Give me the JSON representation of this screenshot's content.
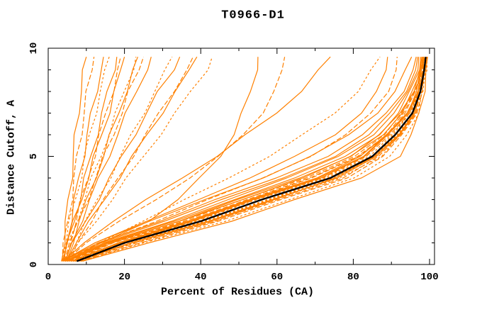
{
  "chart_data": {
    "type": "line",
    "title": "T0966-D1",
    "xlabel": "Percent of Residues (CA)",
    "ylabel": "Distance Cutoff, A",
    "xlim": [
      0,
      101.3
    ],
    "ylim": [
      0,
      10
    ],
    "x_axis": {
      "major_ticks": [
        0,
        20,
        40,
        60,
        80,
        100
      ],
      "minor_tick_step": 10
    },
    "y_axis": {
      "major_ticks": [
        0,
        5,
        10
      ],
      "minor_tick_step": 1
    },
    "grid": false,
    "legend_position": "none",
    "colors": {
      "model": "#ff8000",
      "reference": "#000000",
      "axis": "#000000",
      "background": "#ffffff"
    },
    "x_is": "percent_of_residues_CA",
    "y_is": "distance_cutoff_angstrom",
    "cutoffs": [
      0.15,
      1,
      2,
      3,
      4,
      5,
      6,
      7,
      8,
      9,
      9.6
    ],
    "series": [
      {
        "role": "model",
        "values": [
          3.5,
          4,
          4.7,
          5.4,
          6,
          6.6,
          7.2,
          7.9,
          8.5,
          9.4,
          10
        ]
      },
      {
        "role": "model",
        "values": [
          3.7,
          4.3,
          5.2,
          6,
          6.9,
          7.7,
          8.5,
          9.4,
          10.3,
          11.3,
          12
        ]
      },
      {
        "role": "model",
        "values": [
          4,
          4.8,
          5.9,
          7,
          8.1,
          9.2,
          10.3,
          11.4,
          12.6,
          13.8,
          14.5
        ]
      },
      {
        "role": "model",
        "values": [
          3.5,
          4.5,
          5.8,
          7.1,
          8.4,
          9.7,
          11,
          12.3,
          13.7,
          15.2,
          16
        ]
      },
      {
        "role": "model",
        "values": [
          4.2,
          5.2,
          6.7,
          8.2,
          9.7,
          11.2,
          12.7,
          14.2,
          15.7,
          17.2,
          18
        ]
      },
      {
        "role": "model",
        "values": [
          4.5,
          5.6,
          7.2,
          8.8,
          10.4,
          12,
          13.6,
          15.2,
          16.8,
          18.3,
          19
        ]
      },
      {
        "role": "model",
        "values": [
          3.8,
          5,
          6.8,
          8.6,
          10.4,
          12.2,
          14,
          15.8,
          17.5,
          19.2,
          20
        ]
      },
      {
        "role": "model",
        "values": [
          4,
          5.4,
          7.4,
          9.5,
          11.6,
          13.7,
          15.8,
          17.9,
          20,
          22,
          23
        ]
      },
      {
        "role": "model",
        "values": [
          4.8,
          6.2,
          8.2,
          10.3,
          12.3,
          14.4,
          16.4,
          18.4,
          20.4,
          22.5,
          23.5
        ]
      },
      {
        "role": "model",
        "values": [
          4.3,
          5.8,
          8,
          10.2,
          12.5,
          14.7,
          17,
          19.2,
          21.3,
          23.8,
          25
        ]
      },
      {
        "role": "model",
        "values": [
          4.6,
          6.2,
          8.6,
          11,
          13.4,
          15.8,
          18.2,
          20.6,
          23,
          25.8,
          27
        ]
      },
      {
        "role": "model",
        "values": [
          5,
          7,
          10,
          13,
          16,
          19,
          22,
          25,
          27.8,
          31,
          32.5
        ]
      },
      {
        "role": "model",
        "values": [
          4.4,
          6.6,
          9.8,
          13,
          16.2,
          19.4,
          22.6,
          25.8,
          29,
          32.8,
          34.5
        ]
      },
      {
        "role": "model",
        "values": [
          5.2,
          7.6,
          11.2,
          14.8,
          18.4,
          22,
          25.6,
          29.2,
          32.7,
          36.3,
          38
        ]
      },
      {
        "role": "model",
        "values": [
          4.7,
          7.2,
          11,
          14.7,
          18.5,
          22.2,
          26,
          29.7,
          33.4,
          37.3,
          39
        ]
      },
      {
        "role": "model",
        "values": [
          5.5,
          8.2,
          12.4,
          16.6,
          20.8,
          25,
          29.2,
          33.4,
          37.5,
          41.5,
          43
        ]
      },
      {
        "role": "model",
        "values": [
          4,
          9,
          17,
          26,
          35,
          44,
          52,
          60,
          66,
          71,
          74
        ]
      },
      {
        "role": "model",
        "values": [
          4.5,
          10,
          19,
          28,
          37,
          45,
          51,
          56,
          59.5,
          61.5,
          62
        ]
      },
      {
        "role": "model",
        "values": [
          5,
          14,
          26,
          34,
          40,
          45,
          48.5,
          51,
          53,
          54.5,
          55
        ]
      },
      {
        "role": "model",
        "values": [
          5,
          13,
          25,
          36,
          47,
          58,
          67,
          75,
          81,
          85,
          87
        ]
      },
      {
        "role": "model",
        "values": [
          4,
          12.5,
          26,
          39,
          53,
          65,
          75,
          82,
          86.5,
          88.5,
          89
        ]
      },
      {
        "role": "model",
        "values": [
          4.5,
          13.5,
          28,
          42,
          56.5,
          68.5,
          78,
          85,
          89,
          91,
          91.5
        ]
      },
      {
        "role": "model",
        "values": [
          6,
          18,
          37,
          53,
          70,
          82,
          89,
          94,
          96.5,
          98,
          98.5
        ]
      },
      {
        "role": "model",
        "values": [
          7,
          21,
          42,
          58,
          76,
          86,
          92,
          96,
          98,
          99,
          99.3
        ]
      },
      {
        "role": "model",
        "values": [
          5,
          16,
          34,
          50,
          66,
          79,
          87,
          92.5,
          95.5,
          97.5,
          98
        ]
      },
      {
        "role": "model",
        "values": [
          8,
          23,
          44,
          60,
          77,
          87,
          92.5,
          96,
          97.8,
          98.8,
          99.2
        ]
      },
      {
        "role": "model",
        "values": [
          4.5,
          15,
          32,
          47,
          63,
          76,
          85,
          91,
          94.5,
          96.5,
          97.2
        ]
      },
      {
        "role": "model",
        "values": [
          6.5,
          19,
          39,
          55,
          72,
          84,
          90.5,
          94.8,
          97,
          98.3,
          98.8
        ]
      },
      {
        "role": "model",
        "values": [
          7.5,
          22,
          43,
          59,
          75,
          86,
          91.8,
          95.6,
          97.5,
          98.6,
          99
        ]
      },
      {
        "role": "model",
        "values": [
          5.5,
          17,
          35,
          51,
          68,
          80,
          88,
          93,
          96,
          97.8,
          98.3
        ]
      },
      {
        "role": "model",
        "values": [
          6,
          18.5,
          38,
          54,
          71,
          83,
          89.5,
          94.2,
          96.8,
          98.1,
          98.6
        ]
      },
      {
        "role": "model",
        "values": [
          7,
          20,
          41,
          57,
          74,
          85.5,
          91.2,
          95.2,
          97.3,
          98.4,
          98.9
        ]
      },
      {
        "role": "model",
        "values": [
          4,
          13,
          29,
          44,
          60,
          73,
          82.5,
          89,
          93,
          95.5,
          96.5
        ]
      },
      {
        "role": "model",
        "values": [
          8.5,
          24,
          45,
          61,
          78,
          88,
          93,
          96.3,
          98.1,
          99,
          99.4
        ]
      },
      {
        "role": "model",
        "values": [
          5,
          15.5,
          33,
          48.5,
          65,
          78,
          86.5,
          92,
          95,
          97,
          97.7
        ]
      },
      {
        "role": "model",
        "values": [
          6.5,
          19.5,
          40,
          56,
          73,
          84.5,
          90.8,
          95,
          97.1,
          98.2,
          98.7
        ]
      },
      {
        "role": "model",
        "values": [
          7.5,
          21.5,
          42.5,
          58.5,
          75.5,
          86.5,
          92.2,
          95.8,
          97.7,
          98.7,
          99.1
        ]
      },
      {
        "role": "model",
        "values": [
          5.5,
          16.5,
          36,
          52,
          69,
          81,
          88.5,
          93.5,
          96.3,
          98,
          98.4
        ]
      },
      {
        "role": "model",
        "values": [
          6,
          18,
          37.5,
          53.5,
          70.5,
          82.5,
          89.2,
          94,
          96.6,
          98,
          98.5
        ]
      },
      {
        "role": "model",
        "values": [
          7,
          20.5,
          41.5,
          57.5,
          74.5,
          86,
          91.5,
          95.4,
          97.4,
          98.5,
          99
        ]
      },
      {
        "role": "model",
        "values": [
          4.5,
          14,
          30,
          45.5,
          62,
          75,
          84,
          90,
          93.8,
          96,
          96.9
        ]
      },
      {
        "role": "model",
        "values": [
          6.5,
          19,
          38.5,
          54.5,
          71.5,
          83.5,
          90,
          94.5,
          96.9,
          98.2,
          98.7
        ]
      },
      {
        "role": "model",
        "values": [
          5,
          16,
          34.5,
          50.5,
          67,
          79.5,
          87.5,
          92.8,
          95.8,
          97.6,
          98.1
        ]
      },
      {
        "role": "model",
        "values": [
          7.5,
          22.5,
          43.5,
          59.5,
          76.5,
          87,
          92.3,
          96.1,
          97.9,
          98.8,
          99.2
        ]
      },
      {
        "role": "model",
        "values": [
          3.5,
          12,
          27,
          41,
          56,
          69,
          79,
          86,
          91,
          94,
          95.3
        ]
      },
      {
        "role": "model",
        "values": [
          6,
          17.5,
          36.5,
          52.5,
          69.5,
          81.5,
          88.8,
          93.8,
          96.5,
          98,
          98.5
        ]
      },
      {
        "role": "model",
        "values": [
          9,
          26,
          48,
          65,
          82,
          92,
          95.5,
          97.3,
          98.4,
          99.2,
          99.5
        ]
      },
      {
        "role": "model",
        "values": [
          8.5,
          25,
          47,
          63,
          80,
          90,
          94,
          96.8,
          98.2,
          99,
          99.3
        ]
      },
      {
        "role": "reference",
        "values": [
          7.5,
          20,
          40,
          56,
          74,
          85,
          91,
          95.5,
          97.6,
          98.6,
          99
        ]
      }
    ]
  }
}
